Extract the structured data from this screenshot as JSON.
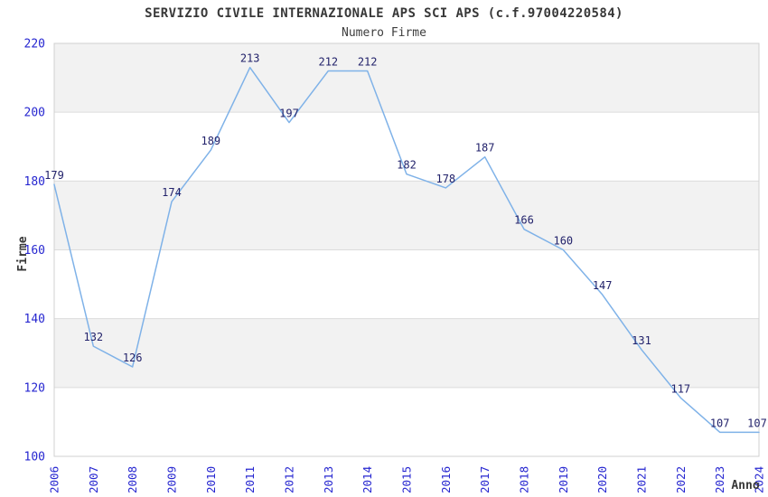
{
  "chart_data": {
    "type": "line",
    "title": "SERVIZIO CIVILE INTERNAZIONALE APS SCI APS (c.f.97004220584)",
    "subtitle": "Numero Firme",
    "xlabel": "Anno",
    "ylabel": "Firme",
    "categories": [
      "2006",
      "2007",
      "2008",
      "2009",
      "2010",
      "2011",
      "2012",
      "2013",
      "2014",
      "2015",
      "2016",
      "2017",
      "2018",
      "2019",
      "2020",
      "2021",
      "2022",
      "2023",
      "2024"
    ],
    "values": [
      179,
      132,
      126,
      174,
      189,
      213,
      197,
      212,
      212,
      182,
      178,
      187,
      166,
      160,
      147,
      131,
      117,
      107,
      107
    ],
    "ylim": [
      100,
      220
    ],
    "ytick_step": 20,
    "yticks": [
      100,
      120,
      140,
      160,
      180,
      200,
      220
    ],
    "grid": true,
    "banded_background": true,
    "legend_position": "none",
    "data_labels_visible": true,
    "colors": {
      "line": "#7FB2E8",
      "axis_tick_labels": "#2626D0",
      "data_labels": "#22226B",
      "band": "#F2F2F2",
      "grid": "#DCDCDC",
      "border": "#D0D0D0",
      "title": "#383838",
      "axis_titles": "#383838",
      "background": "#FFFFFF"
    }
  }
}
